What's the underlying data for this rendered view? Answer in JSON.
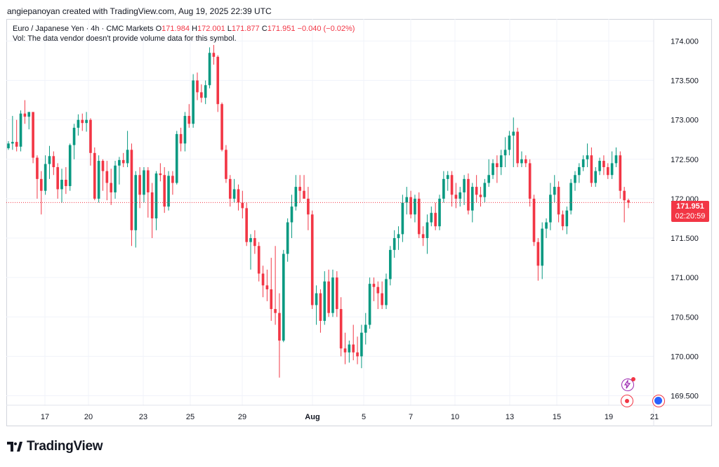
{
  "header": {
    "text": "angiepanoyan created with TradingView.com, Aug 19, 2025 22:39 UTC"
  },
  "legend": {
    "symbol": "Euro / Japanese Yen · 4h · CMC Markets",
    "o_label": "O",
    "o_val": "171.984",
    "h_label": "H",
    "h_val": "172.001",
    "l_label": "L",
    "l_val": "171.877",
    "c_label": "C",
    "c_val": "171.951",
    "change": "−0.040 (−0.02%)",
    "vol_note": "Vol: The data vendor doesn't provide volume data for this symbol."
  },
  "price_tag": {
    "price": "171.951",
    "countdown": "02:20:59"
  },
  "logo": {
    "text": "TradingView"
  },
  "icons": {
    "lightning": "lightning-icon",
    "alert": "alert-dot-icon",
    "globe": "globe-icon"
  },
  "colors": {
    "up": "#089981",
    "down": "#f23645",
    "grid": "#f0f3fa",
    "axis_text": "#131722"
  },
  "chart_data": {
    "type": "candlestick",
    "title": "Euro / Japanese Yen · 4h · CMC Markets",
    "ylim": [
      169.38,
      174.28
    ],
    "y_ticks": [
      "174.000",
      "173.500",
      "173.000",
      "172.500",
      "172.000",
      "171.500",
      "171.000",
      "170.500",
      "170.000",
      "169.500"
    ],
    "x_ticks": [
      "17",
      "20",
      "23",
      "25",
      "29",
      "Aug",
      "5",
      "7",
      "10",
      "13",
      "15",
      "19",
      "21"
    ],
    "last_price": 171.951,
    "candles": [
      [
        172.64,
        172.73,
        172.62,
        172.7
      ],
      [
        172.7,
        173.05,
        172.62,
        172.72
      ],
      [
        172.72,
        173.0,
        172.6,
        172.66
      ],
      [
        172.66,
        173.12,
        172.6,
        173.08
      ],
      [
        173.08,
        173.25,
        172.95,
        173.04
      ],
      [
        173.04,
        173.1,
        172.88,
        173.1
      ],
      [
        173.1,
        173.08,
        172.45,
        172.52
      ],
      [
        172.52,
        172.55,
        172.0,
        172.25
      ],
      [
        172.25,
        172.35,
        171.8,
        172.1
      ],
      [
        172.1,
        172.55,
        172.05,
        172.44
      ],
      [
        172.44,
        172.67,
        172.25,
        172.54
      ],
      [
        172.54,
        172.6,
        172.3,
        172.4
      ],
      [
        172.4,
        172.45,
        172.0,
        172.12
      ],
      [
        172.12,
        172.38,
        171.95,
        172.24
      ],
      [
        172.24,
        172.4,
        172.06,
        172.16
      ],
      [
        172.16,
        172.7,
        172.1,
        172.68
      ],
      [
        172.68,
        172.95,
        172.5,
        172.9
      ],
      [
        172.9,
        173.07,
        172.8,
        173.0
      ],
      [
        173.0,
        173.08,
        172.86,
        172.96
      ],
      [
        172.96,
        173.1,
        172.85,
        173.0
      ],
      [
        173.0,
        173.02,
        172.42,
        172.58
      ],
      [
        172.58,
        172.65,
        171.98,
        172.0
      ],
      [
        172.0,
        172.55,
        171.95,
        172.48
      ],
      [
        172.48,
        172.5,
        172.1,
        172.35
      ],
      [
        172.35,
        172.48,
        171.98,
        172.2
      ],
      [
        172.2,
        172.38,
        171.92,
        172.08
      ],
      [
        172.08,
        172.48,
        172.0,
        172.42
      ],
      [
        172.42,
        172.53,
        172.18,
        172.49
      ],
      [
        172.49,
        172.58,
        172.4,
        172.45
      ],
      [
        172.45,
        172.86,
        172.4,
        172.62
      ],
      [
        172.62,
        172.7,
        171.4,
        171.6
      ],
      [
        171.6,
        172.35,
        171.38,
        172.3
      ],
      [
        172.3,
        172.4,
        171.88,
        172.05
      ],
      [
        172.05,
        172.4,
        171.95,
        172.36
      ],
      [
        172.36,
        172.4,
        171.76,
        172.08
      ],
      [
        172.08,
        172.2,
        171.5,
        171.75
      ],
      [
        171.75,
        172.35,
        171.6,
        172.32
      ],
      [
        172.32,
        172.45,
        172.22,
        172.3
      ],
      [
        172.3,
        172.4,
        171.82,
        171.9
      ],
      [
        171.9,
        172.35,
        171.85,
        172.29
      ],
      [
        172.29,
        172.35,
        172.05,
        172.2
      ],
      [
        172.2,
        172.86,
        172.18,
        172.82
      ],
      [
        172.82,
        172.9,
        172.6,
        172.7
      ],
      [
        172.7,
        173.1,
        172.6,
        173.05
      ],
      [
        173.05,
        173.2,
        172.9,
        172.95
      ],
      [
        172.95,
        173.58,
        172.9,
        173.5
      ],
      [
        173.5,
        173.6,
        173.25,
        173.35
      ],
      [
        173.35,
        173.45,
        173.22,
        173.28
      ],
      [
        173.28,
        173.5,
        173.2,
        173.44
      ],
      [
        173.44,
        173.92,
        173.4,
        173.85
      ],
      [
        173.85,
        173.95,
        173.7,
        173.8
      ],
      [
        173.8,
        173.82,
        173.1,
        173.2
      ],
      [
        173.2,
        173.22,
        172.6,
        172.62
      ],
      [
        172.62,
        172.68,
        172.2,
        172.25
      ],
      [
        172.25,
        172.3,
        171.9,
        172.0
      ],
      [
        172.0,
        172.25,
        171.95,
        172.12
      ],
      [
        172.12,
        172.18,
        171.85,
        171.95
      ],
      [
        171.95,
        172.1,
        171.75,
        171.88
      ],
      [
        171.88,
        171.95,
        171.4,
        171.45
      ],
      [
        171.45,
        171.55,
        171.1,
        171.5
      ],
      [
        171.5,
        171.6,
        171.3,
        171.4
      ],
      [
        171.4,
        171.45,
        170.95,
        171.05
      ],
      [
        171.05,
        171.15,
        170.75,
        170.9
      ],
      [
        170.9,
        171.1,
        170.7,
        170.85
      ],
      [
        170.85,
        171.25,
        170.45,
        170.6
      ],
      [
        170.6,
        171.4,
        170.4,
        170.55
      ],
      [
        170.55,
        170.8,
        169.73,
        170.2
      ],
      [
        170.2,
        171.35,
        170.18,
        171.3
      ],
      [
        171.3,
        171.75,
        171.2,
        171.7
      ],
      [
        171.7,
        172.05,
        171.5,
        171.9
      ],
      [
        171.9,
        172.3,
        171.85,
        172.15
      ],
      [
        172.15,
        172.3,
        171.95,
        172.1
      ],
      [
        172.1,
        172.3,
        172.0,
        172.0
      ],
      [
        172.0,
        172.15,
        171.6,
        171.8
      ],
      [
        171.8,
        171.85,
        170.6,
        170.65
      ],
      [
        170.65,
        170.9,
        170.4,
        170.8
      ],
      [
        170.8,
        170.85,
        170.3,
        170.45
      ],
      [
        170.45,
        171.08,
        170.4,
        170.95
      ],
      [
        170.95,
        171.1,
        170.5,
        170.55
      ],
      [
        170.55,
        171.1,
        170.5,
        171.0
      ],
      [
        171.0,
        171.08,
        170.5,
        170.6
      ],
      [
        170.6,
        170.75,
        170.0,
        170.1
      ],
      [
        170.1,
        170.3,
        169.9,
        170.05
      ],
      [
        170.05,
        170.2,
        169.92,
        170.15
      ],
      [
        170.15,
        170.4,
        169.95,
        170.05
      ],
      [
        170.05,
        170.25,
        169.9,
        170.0
      ],
      [
        170.0,
        170.4,
        169.85,
        170.3
      ],
      [
        170.3,
        170.55,
        170.15,
        170.4
      ],
      [
        170.4,
        171.0,
        170.35,
        170.92
      ],
      [
        170.92,
        171.0,
        170.7,
        170.88
      ],
      [
        170.88,
        170.95,
        170.6,
        170.8
      ],
      [
        170.8,
        170.95,
        170.6,
        170.65
      ],
      [
        170.65,
        171.05,
        170.6,
        170.98
      ],
      [
        170.98,
        171.4,
        170.9,
        171.35
      ],
      [
        171.35,
        171.6,
        171.25,
        171.5
      ],
      [
        171.5,
        171.65,
        171.35,
        171.55
      ],
      [
        171.55,
        172.05,
        171.45,
        171.95
      ],
      [
        171.95,
        172.15,
        171.8,
        172.02
      ],
      [
        172.02,
        172.1,
        171.75,
        171.8
      ],
      [
        171.8,
        172.05,
        171.7,
        172.0
      ],
      [
        172.0,
        172.08,
        171.5,
        171.55
      ],
      [
        171.55,
        171.65,
        171.4,
        171.5
      ],
      [
        171.5,
        171.8,
        171.3,
        171.7
      ],
      [
        171.7,
        171.9,
        171.65,
        171.82
      ],
      [
        171.82,
        171.95,
        171.6,
        171.65
      ],
      [
        171.65,
        172.05,
        171.6,
        172.0
      ],
      [
        172.0,
        172.35,
        171.95,
        172.25
      ],
      [
        172.25,
        172.35,
        172.1,
        172.3
      ],
      [
        172.3,
        172.35,
        171.9,
        172.05
      ],
      [
        172.05,
        172.2,
        171.88,
        172.0
      ],
      [
        172.0,
        172.15,
        171.9,
        172.08
      ],
      [
        172.08,
        172.3,
        171.92,
        172.25
      ],
      [
        172.25,
        172.32,
        171.8,
        171.85
      ],
      [
        171.85,
        172.2,
        171.7,
        172.15
      ],
      [
        172.15,
        172.3,
        171.95,
        172.05
      ],
      [
        172.05,
        172.15,
        171.9,
        172.02
      ],
      [
        172.02,
        172.25,
        171.95,
        172.2
      ],
      [
        172.2,
        172.5,
        172.15,
        172.3
      ],
      [
        172.3,
        172.5,
        172.25,
        172.45
      ],
      [
        172.45,
        172.55,
        172.2,
        172.4
      ],
      [
        172.4,
        172.62,
        172.3,
        172.55
      ],
      [
        172.55,
        172.78,
        172.4,
        172.62
      ],
      [
        172.62,
        172.86,
        172.55,
        172.8
      ],
      [
        172.8,
        173.03,
        172.4,
        172.85
      ],
      [
        172.85,
        172.9,
        172.4,
        172.45
      ],
      [
        172.45,
        172.6,
        172.4,
        172.5
      ],
      [
        172.5,
        172.55,
        172.4,
        172.45
      ],
      [
        172.45,
        172.5,
        171.9,
        172.0
      ],
      [
        172.0,
        172.05,
        171.4,
        171.45
      ],
      [
        171.45,
        171.5,
        170.96,
        171.15
      ],
      [
        171.15,
        171.7,
        170.98,
        171.62
      ],
      [
        171.62,
        171.75,
        171.5,
        171.7
      ],
      [
        171.7,
        172.2,
        171.6,
        172.05
      ],
      [
        172.05,
        172.3,
        171.95,
        172.15
      ],
      [
        172.15,
        172.22,
        171.7,
        171.8
      ],
      [
        171.8,
        171.85,
        171.6,
        171.65
      ],
      [
        171.65,
        171.9,
        171.55,
        171.85
      ],
      [
        171.85,
        172.25,
        171.8,
        172.2
      ],
      [
        172.2,
        172.35,
        172.1,
        172.3
      ],
      [
        172.3,
        172.45,
        172.2,
        172.4
      ],
      [
        172.4,
        172.55,
        172.35,
        172.5
      ],
      [
        172.5,
        172.7,
        172.4,
        172.55
      ],
      [
        172.55,
        172.65,
        172.15,
        172.2
      ],
      [
        172.2,
        172.4,
        172.15,
        172.35
      ],
      [
        172.35,
        172.52,
        172.3,
        172.48
      ],
      [
        172.48,
        172.55,
        172.3,
        172.4
      ],
      [
        172.4,
        172.45,
        172.25,
        172.3
      ],
      [
        172.3,
        172.6,
        172.25,
        172.45
      ],
      [
        172.45,
        172.65,
        172.4,
        172.55
      ],
      [
        172.55,
        172.6,
        172.0,
        172.1
      ],
      [
        172.1,
        172.15,
        171.7,
        171.98
      ],
      [
        171.98,
        172.0,
        171.88,
        171.95
      ]
    ]
  }
}
